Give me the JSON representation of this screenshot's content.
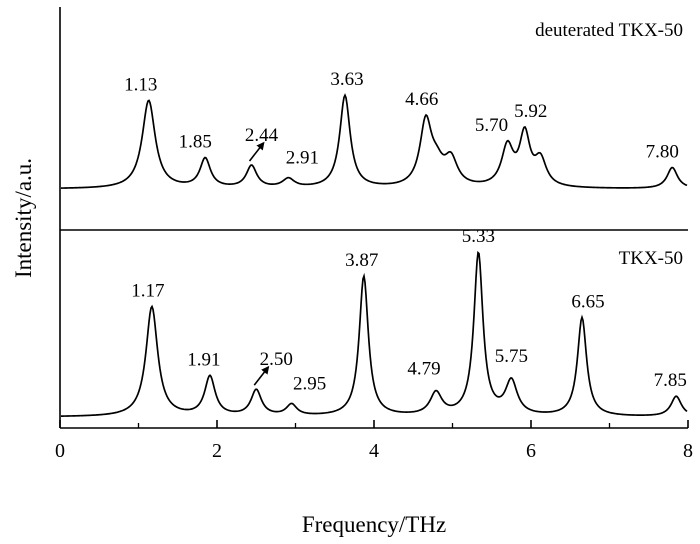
{
  "chart_data": {
    "type": "line",
    "xlabel": "Frequency/THz",
    "ylabel": "Intensity/a.u.",
    "xlim": [
      0,
      8
    ],
    "xticks": [
      "0",
      "2",
      "4",
      "6",
      "8"
    ],
    "grid": false,
    "line_color": "#000000",
    "panels": [
      {
        "title": "deuterated TKX-50",
        "baseline": 0.0,
        "peaks": [
          {
            "x": 1.13,
            "label": "1.13",
            "height": 1.0,
            "width": 0.1
          },
          {
            "x": 1.85,
            "label": "1.85",
            "height": 0.33,
            "width": 0.08
          },
          {
            "x": 2.44,
            "label": "2.44",
            "height": 0.25,
            "width": 0.08
          },
          {
            "x": 2.91,
            "label": "2.91",
            "height": 0.1,
            "width": 0.09
          },
          {
            "x": 3.63,
            "label": "3.63",
            "height": 1.05,
            "width": 0.08
          },
          {
            "x": 4.66,
            "label": "4.66",
            "height": 0.73,
            "width": 0.09
          },
          {
            "x": 4.8,
            "label": "",
            "height": 0.2,
            "width": 0.1
          },
          {
            "x": 4.98,
            "label": "",
            "height": 0.3,
            "width": 0.1
          },
          {
            "x": 5.7,
            "label": "5.70",
            "height": 0.45,
            "width": 0.09
          },
          {
            "x": 5.92,
            "label": "5.92",
            "height": 0.58,
            "width": 0.08
          },
          {
            "x": 6.12,
            "label": "",
            "height": 0.3,
            "width": 0.09
          },
          {
            "x": 7.8,
            "label": "7.80",
            "height": 0.24,
            "width": 0.08
          }
        ]
      },
      {
        "title": "TKX-50",
        "baseline": 0.0,
        "peaks": [
          {
            "x": 1.17,
            "label": "1.17",
            "height": 0.98,
            "width": 0.09
          },
          {
            "x": 1.91,
            "label": "1.91",
            "height": 0.35,
            "width": 0.08
          },
          {
            "x": 2.5,
            "label": "2.50",
            "height": 0.23,
            "width": 0.08
          },
          {
            "x": 2.95,
            "label": "2.95",
            "height": 0.1,
            "width": 0.08
          },
          {
            "x": 3.87,
            "label": "3.87",
            "height": 1.25,
            "width": 0.07
          },
          {
            "x": 4.79,
            "label": "4.79",
            "height": 0.2,
            "width": 0.09
          },
          {
            "x": 5.33,
            "label": "5.33",
            "height": 1.45,
            "width": 0.07
          },
          {
            "x": 5.75,
            "label": "5.75",
            "height": 0.3,
            "width": 0.09
          },
          {
            "x": 6.65,
            "label": "6.65",
            "height": 0.88,
            "width": 0.07
          },
          {
            "x": 7.85,
            "label": "7.85",
            "height": 0.18,
            "width": 0.08
          }
        ]
      }
    ]
  }
}
